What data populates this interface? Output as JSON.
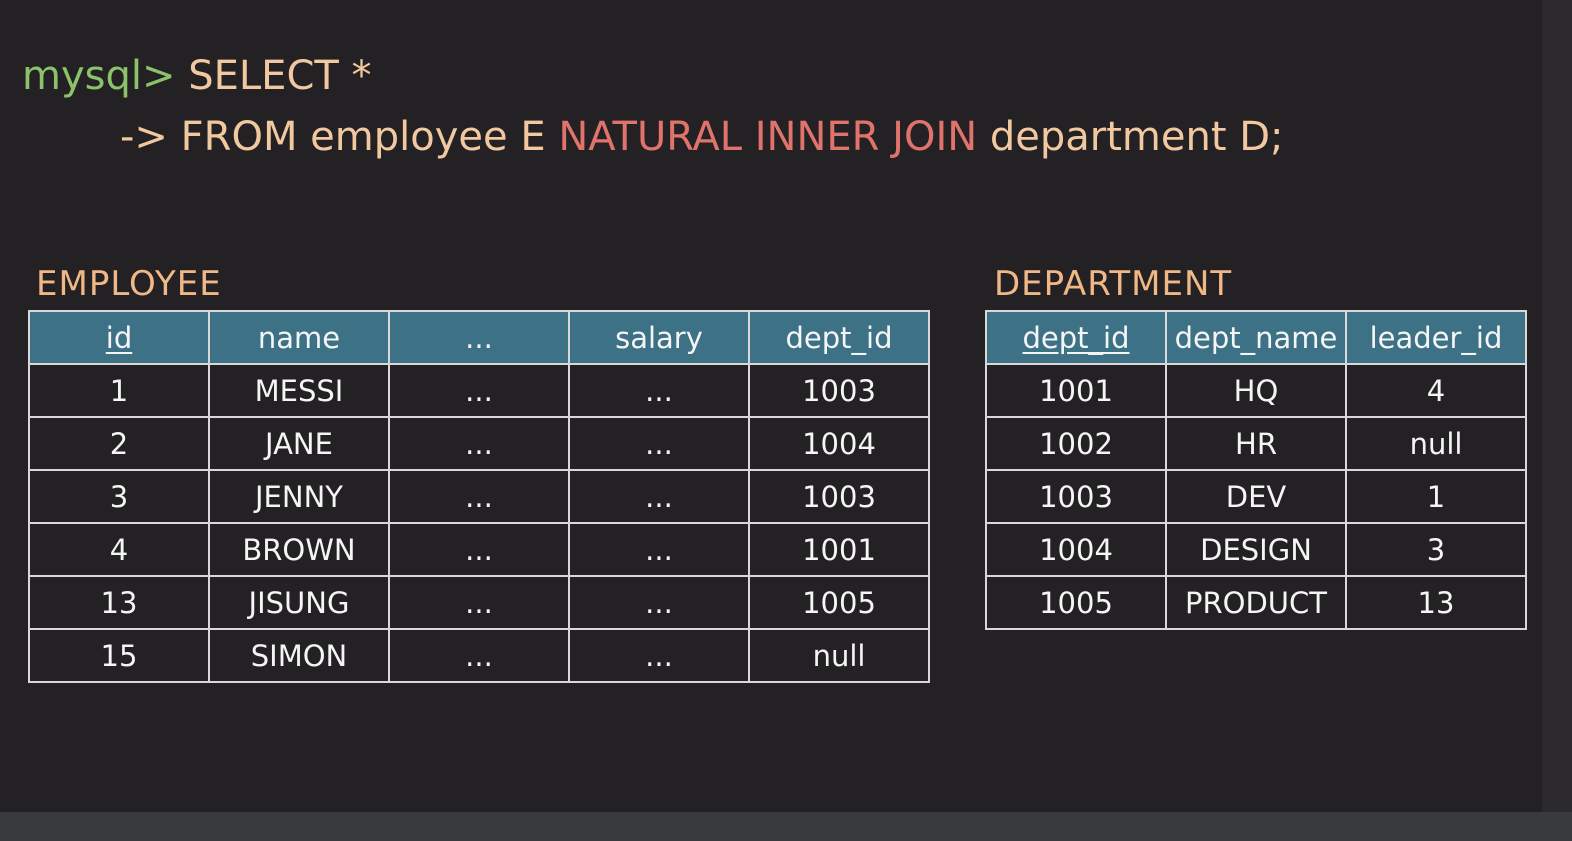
{
  "query": {
    "prompt": "mysql>",
    "line1_sql": " SELECT *",
    "continuation": "->",
    "line2_from": " FROM employee E ",
    "line2_join": "NATURAL INNER JOIN",
    "line2_rest": " department D;"
  },
  "employee": {
    "title": "EMPLOYEE",
    "headers": [
      "id",
      "name",
      "...",
      "salary",
      "dept_id"
    ],
    "rows": [
      [
        "1",
        "MESSI",
        "...",
        "...",
        "1003"
      ],
      [
        "2",
        "JANE",
        "...",
        "...",
        "1004"
      ],
      [
        "3",
        "JENNY",
        "...",
        "...",
        "1003"
      ],
      [
        "4",
        "BROWN",
        "...",
        "...",
        "1001"
      ],
      [
        "13",
        "JISUNG",
        "...",
        "...",
        "1005"
      ],
      [
        "15",
        "SIMON",
        "...",
        "...",
        "null"
      ]
    ]
  },
  "department": {
    "title": "DEPARTMENT",
    "headers": [
      "dept_id",
      "dept_name",
      "leader_id"
    ],
    "rows": [
      [
        "1001",
        "HQ",
        "4"
      ],
      [
        "1002",
        "HR",
        "null"
      ],
      [
        "1003",
        "DEV",
        "1"
      ],
      [
        "1004",
        "DESIGN",
        "3"
      ],
      [
        "1005",
        "PRODUCT",
        "13"
      ]
    ]
  },
  "colors": {
    "background": "#232123",
    "prompt": "#8cc36a",
    "keyword_join": "#e0736c",
    "sql_text": "#f2c8a0",
    "table_title": "#f0b787",
    "header_fill": "#3c7186",
    "cell_text": "#f5f5f5"
  }
}
